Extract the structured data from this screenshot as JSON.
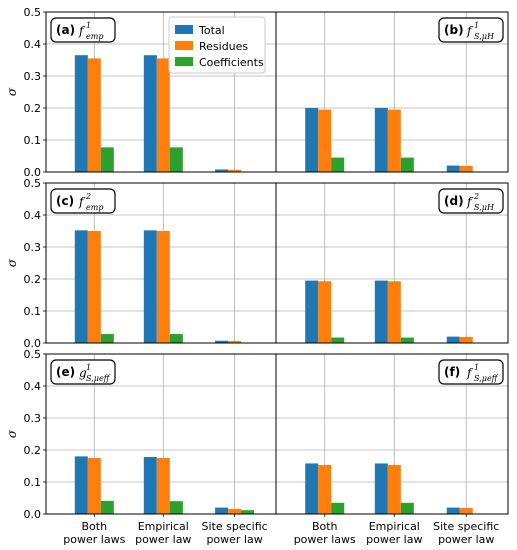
{
  "chart_data": {
    "type": "bar",
    "ylabel": "σ",
    "ylim": [
      0,
      0.5
    ],
    "yticks": [
      "0.0",
      "0.1",
      "0.2",
      "0.3",
      "0.4",
      "0.5"
    ],
    "grid": true,
    "categories": [
      [
        "Both",
        "power laws"
      ],
      [
        "Empirical",
        "power law"
      ],
      [
        "Site specific",
        "power law"
      ]
    ],
    "legend": {
      "placement": "top-left-panel upper-right",
      "entries": [
        "Total",
        "Residues",
        "Coefficients"
      ]
    },
    "colors": {
      "Total": "#1f77b4",
      "Residues": "#ff7f0e",
      "Coefficients": "#2ca02c"
    },
    "panels": [
      {
        "letter": "(a)",
        "symbol": "f",
        "sup": "1",
        "sub": "emp",
        "series": [
          {
            "name": "Total",
            "values": [
              0.365,
              0.365,
              0.008
            ]
          },
          {
            "name": "Residues",
            "values": [
              0.355,
              0.355,
              0.007
            ]
          },
          {
            "name": "Coefficients",
            "values": [
              0.077,
              0.077,
              0.001
            ]
          }
        ]
      },
      {
        "letter": "(b)",
        "symbol": "f",
        "sup": "1",
        "sub": "S,μH",
        "series": [
          {
            "name": "Total",
            "values": [
              0.2,
              0.2,
              0.02
            ]
          },
          {
            "name": "Residues",
            "values": [
              0.195,
              0.195,
              0.019
            ]
          },
          {
            "name": "Coefficients",
            "values": [
              0.045,
              0.045,
              0.001
            ]
          }
        ]
      },
      {
        "letter": "(c)",
        "symbol": "f",
        "sup": "2",
        "sub": "emp",
        "series": [
          {
            "name": "Total",
            "values": [
              0.352,
              0.352,
              0.007
            ]
          },
          {
            "name": "Residues",
            "values": [
              0.35,
              0.35,
              0.006
            ]
          },
          {
            "name": "Coefficients",
            "values": [
              0.028,
              0.028,
              0.001
            ]
          }
        ]
      },
      {
        "letter": "(d)",
        "symbol": "f",
        "sup": "2",
        "sub": "S,μH",
        "series": [
          {
            "name": "Total",
            "values": [
              0.195,
              0.195,
              0.02
            ]
          },
          {
            "name": "Residues",
            "values": [
              0.193,
              0.193,
              0.019
            ]
          },
          {
            "name": "Coefficients",
            "values": [
              0.017,
              0.017,
              0.001
            ]
          }
        ]
      },
      {
        "letter": "(e)",
        "symbol": "g",
        "sup": "1",
        "sub": "S,μeff",
        "series": [
          {
            "name": "Total",
            "values": [
              0.18,
              0.178,
              0.02
            ]
          },
          {
            "name": "Residues",
            "values": [
              0.175,
              0.175,
              0.016
            ]
          },
          {
            "name": "Coefficients",
            "values": [
              0.041,
              0.04,
              0.012
            ]
          }
        ]
      },
      {
        "letter": "(f)",
        "symbol": "f",
        "sup": "1",
        "sub": "S,μeff",
        "series": [
          {
            "name": "Total",
            "values": [
              0.158,
              0.158,
              0.02
            ]
          },
          {
            "name": "Residues",
            "values": [
              0.153,
              0.153,
              0.019
            ]
          },
          {
            "name": "Coefficients",
            "values": [
              0.035,
              0.035,
              0.001
            ]
          }
        ]
      }
    ]
  }
}
